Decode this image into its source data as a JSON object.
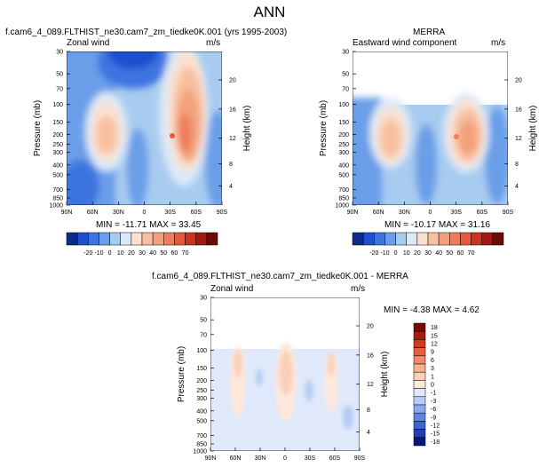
{
  "page_title": "ANN",
  "colors": {
    "scale": [
      "#0a2a8c",
      "#1f4fcf",
      "#3e74e0",
      "#6a9ee8",
      "#a8cbf0",
      "#dce9f7",
      "#fbe1d0",
      "#f7c0a0",
      "#f3a07c",
      "#ee7e5a",
      "#e45a3a",
      "#cc3320",
      "#a01810",
      "#6b0a06"
    ],
    "diff_scale": [
      "#08157a",
      "#1f3fb0",
      "#3b63d2",
      "#5c87e4",
      "#8aaaf0",
      "#b8cdf5",
      "#dfe9fb",
      "#fde8dc",
      "#fbd0b8",
      "#f6b090",
      "#f08a68",
      "#e6603e",
      "#cf3a22",
      "#a81c10",
      "#7a0a06"
    ]
  },
  "chart_data": [
    {
      "type": "heatmap",
      "title": "f.cam6_4_089.FLTHIST_ne30.cam7_zm_tiedke0K.001 (yrs 1995-2003)",
      "subtitle_left": "Zonal wind",
      "subtitle_right": "m/s",
      "ylabel": "Pressure (mb)",
      "ylabel_right": "Height (km)",
      "x_ticks": [
        "90N",
        "60N",
        "30N",
        "0",
        "30S",
        "60S",
        "90S"
      ],
      "y_ticks": [
        "30",
        "50",
        "70",
        "100",
        "150",
        "200",
        "250",
        "300",
        "400",
        "500",
        "700",
        "850",
        "1000"
      ],
      "y_ticks_right": [
        "20",
        "16",
        "12",
        "8",
        "4"
      ],
      "stats": "MIN = -11.71  MAX = 33.45",
      "min": -11.71,
      "max": 33.45,
      "masked_above_mb": 30
    },
    {
      "type": "heatmap",
      "title": "MERRA",
      "subtitle_left": "Eastward wind component",
      "subtitle_right": "m/s",
      "ylabel": "Pressure (mb)",
      "ylabel_right": "Height (km)",
      "x_ticks": [
        "90N",
        "60N",
        "30N",
        "0",
        "30S",
        "60S",
        "90S"
      ],
      "y_ticks": [
        "30",
        "50",
        "70",
        "100",
        "150",
        "200",
        "250",
        "300",
        "400",
        "500",
        "700",
        "850",
        "1000"
      ],
      "y_ticks_right": [
        "20",
        "16",
        "12",
        "8",
        "4"
      ],
      "stats": "MIN = -10.17  MAX = 31.16",
      "min": -10.17,
      "max": 31.16,
      "masked_above_mb": 100
    },
    {
      "type": "heatmap",
      "title": "f.cam6_4_089.FLTHIST_ne30.cam7_zm_tiedke0K.001 - MERRA",
      "subtitle_left": "Zonal wind",
      "subtitle_right": "m/s",
      "ylabel": "Pressure (mb)",
      "ylabel_right": "Height (km)",
      "x_ticks": [
        "90N",
        "60N",
        "30N",
        "0",
        "30S",
        "60S",
        "90S"
      ],
      "y_ticks": [
        "30",
        "50",
        "70",
        "100",
        "150",
        "200",
        "250",
        "300",
        "400",
        "500",
        "700",
        "850",
        "1000"
      ],
      "y_ticks_right": [
        "20",
        "16",
        "12",
        "8",
        "4"
      ],
      "stats": "MIN = -4.38  MAX =  4.62",
      "min": -4.38,
      "max": 4.62,
      "masked_above_mb": 100
    }
  ],
  "colorbar_main": {
    "labels": [
      "-20",
      "-10",
      "0",
      "10",
      "20",
      "30",
      "40",
      "50",
      "60",
      "70"
    ]
  },
  "colorbar_diff": {
    "labels": [
      "18",
      "15",
      "12",
      "9",
      "6",
      "3",
      "1",
      "0",
      "-1",
      "-3",
      "-6",
      "-9",
      "-12",
      "-15",
      "-18"
    ]
  }
}
